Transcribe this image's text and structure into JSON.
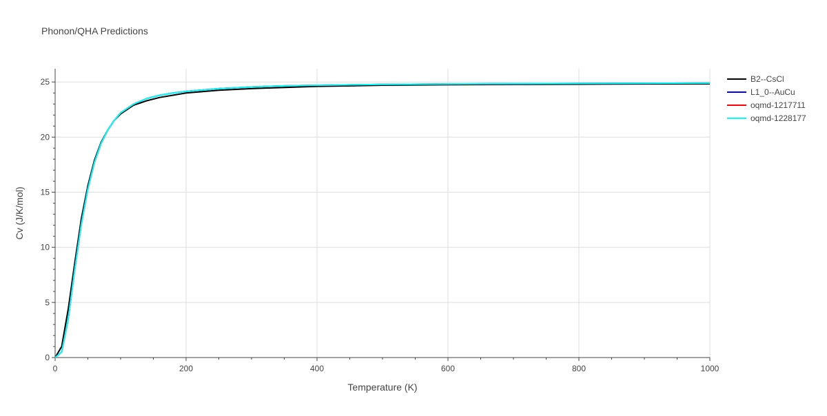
{
  "chart_data": {
    "type": "line",
    "title": "Phonon/QHA Predictions",
    "xlabel": "Temperature (K)",
    "ylabel": "Cv (J/K/mol)",
    "xlim": [
      0,
      1000
    ],
    "ylim": [
      0,
      26.2
    ],
    "xticks": [
      0,
      200,
      400,
      600,
      800,
      1000
    ],
    "yticks": [
      0,
      5,
      10,
      15,
      20,
      25
    ],
    "grid": true,
    "legend_position": "top-right",
    "series": [
      {
        "name": "B2--CsCl",
        "color": "#000000",
        "x": [
          0,
          10,
          20,
          30,
          40,
          50,
          60,
          70,
          80,
          90,
          100,
          120,
          140,
          160,
          180,
          200,
          250,
          300,
          350,
          400,
          500,
          600,
          700,
          800,
          900,
          1000
        ],
        "y": [
          0,
          1.0,
          4.4,
          8.6,
          12.6,
          15.6,
          17.9,
          19.5,
          20.6,
          21.5,
          22.1,
          22.9,
          23.3,
          23.6,
          23.8,
          24.0,
          24.25,
          24.4,
          24.5,
          24.6,
          24.7,
          24.75,
          24.78,
          24.8,
          24.82,
          24.83
        ]
      },
      {
        "name": "L1_0--AuCu",
        "color": "#0000ff",
        "x": [
          0,
          10,
          20,
          30,
          40,
          50,
          60,
          70,
          80,
          90,
          100,
          120,
          140,
          160,
          180,
          200,
          250,
          300,
          350,
          400,
          500,
          600,
          700,
          800,
          900,
          1000
        ],
        "y": [
          0,
          0.5,
          3.5,
          8.0,
          12.1,
          15.3,
          17.7,
          19.4,
          20.6,
          21.5,
          22.2,
          23.0,
          23.5,
          23.8,
          24.0,
          24.15,
          24.4,
          24.55,
          24.65,
          24.7,
          24.78,
          24.82,
          24.85,
          24.87,
          24.88,
          24.9
        ]
      },
      {
        "name": "oqmd-1217711",
        "color": "#ff0000",
        "x": [
          0,
          10,
          20,
          30,
          40,
          50,
          60,
          70,
          80,
          90,
          100,
          120,
          140,
          160,
          180,
          200,
          250,
          300,
          350,
          400,
          500,
          600,
          700,
          800,
          900,
          1000
        ],
        "y": [
          0,
          0.5,
          3.5,
          8.0,
          12.1,
          15.3,
          17.7,
          19.4,
          20.6,
          21.5,
          22.2,
          23.0,
          23.5,
          23.8,
          24.0,
          24.15,
          24.4,
          24.55,
          24.65,
          24.7,
          24.78,
          24.82,
          24.85,
          24.87,
          24.88,
          24.9
        ]
      },
      {
        "name": "oqmd-1228177",
        "color": "#00ffff",
        "x": [
          0,
          10,
          20,
          30,
          40,
          50,
          60,
          70,
          80,
          90,
          100,
          120,
          140,
          160,
          180,
          200,
          250,
          300,
          350,
          400,
          500,
          600,
          700,
          800,
          900,
          1000
        ],
        "y": [
          0,
          0.5,
          3.5,
          8.0,
          12.1,
          15.3,
          17.7,
          19.4,
          20.6,
          21.5,
          22.2,
          23.0,
          23.5,
          23.8,
          24.0,
          24.15,
          24.4,
          24.55,
          24.65,
          24.7,
          24.78,
          24.82,
          24.85,
          24.87,
          24.88,
          24.9
        ]
      }
    ]
  }
}
